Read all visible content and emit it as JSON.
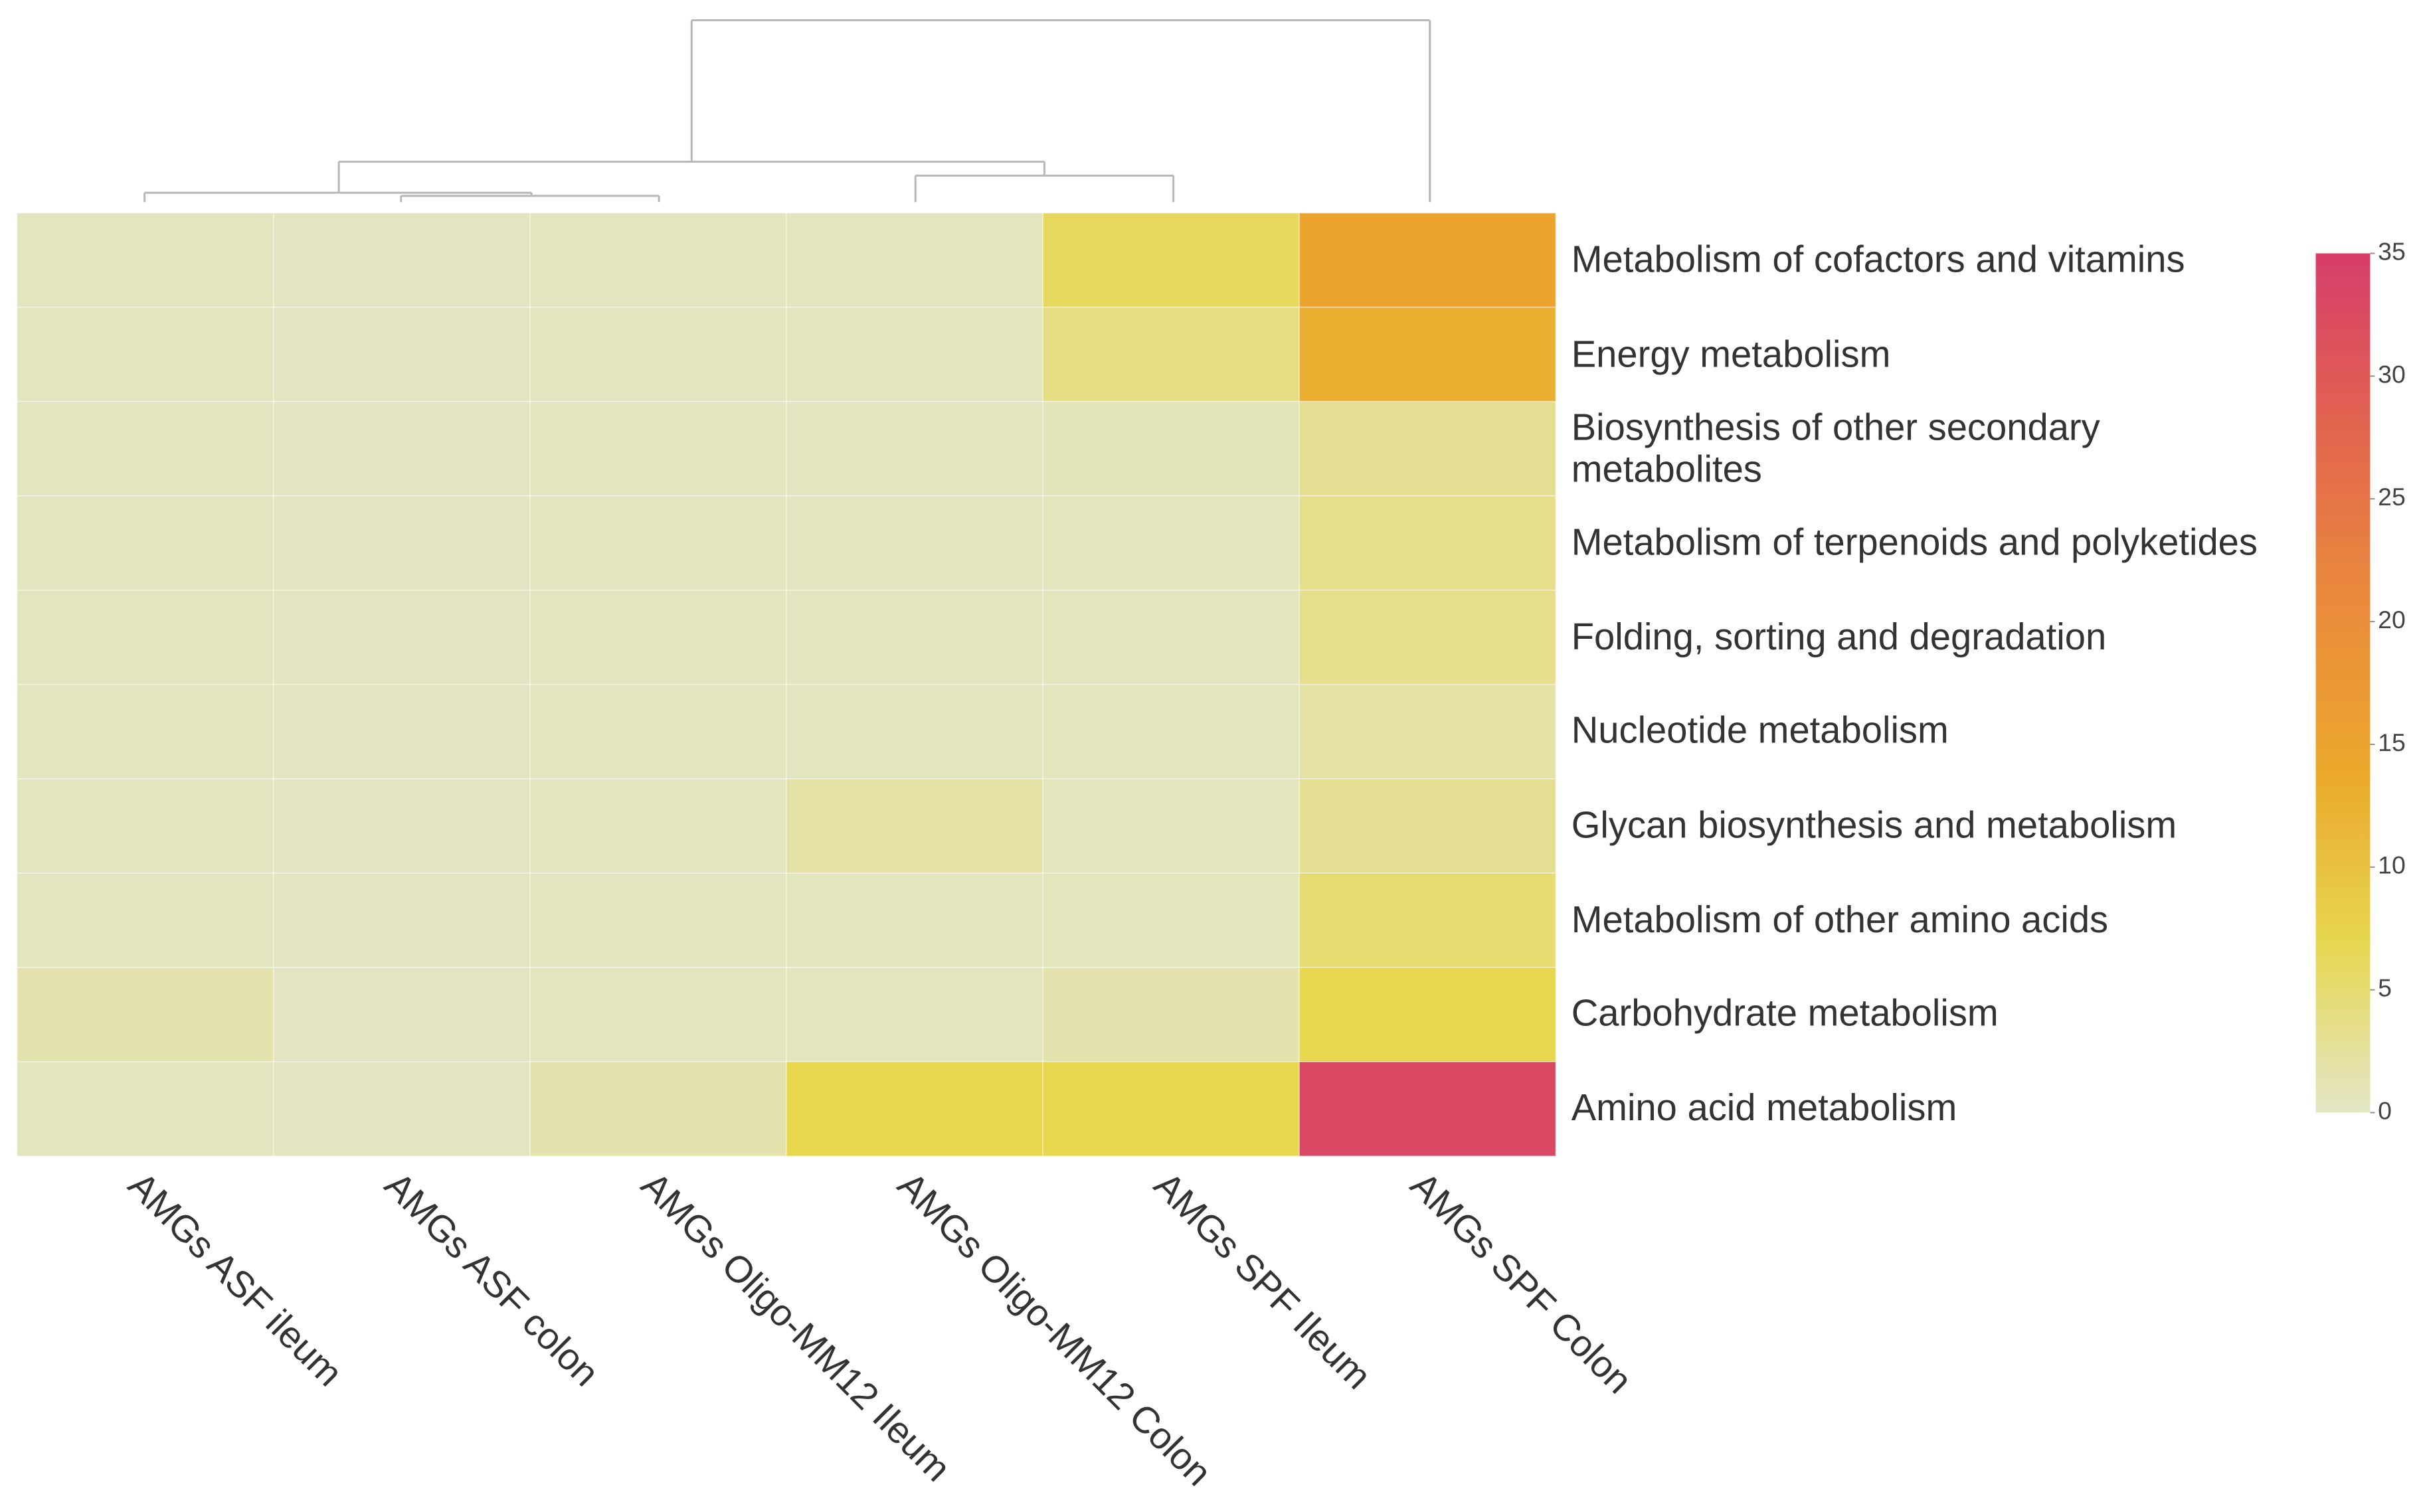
{
  "chart_data": {
    "type": "heatmap",
    "columns": [
      "AMGs ASF ileum",
      "AMGs ASF colon",
      "AMGs Oligo-MM12 Ileum",
      "AMGs Oligo-MM12 Colon",
      "AMGs SPF Ileum",
      "AMGs SPF Colon"
    ],
    "rows": [
      "Metabolism of cofactors and vitamins",
      "Energy metabolism",
      "Biosynthesis of other secondary metabolites",
      "Metabolism of terpenoids and polyketides",
      "Folding, sorting and degradation",
      "Nucleotide metabolism",
      "Glycan biosynthesis and metabolism",
      "Metabolism of other amino acids",
      "Carbohydrate metabolism",
      "Amino acid metabolism"
    ],
    "values": [
      [
        0.5,
        0.3,
        0.4,
        0.5,
        6,
        15
      ],
      [
        0.5,
        0.3,
        0.4,
        0.5,
        4,
        13
      ],
      [
        0.4,
        0.3,
        0.4,
        0.4,
        0.8,
        3
      ],
      [
        0.4,
        0.3,
        0.4,
        0.4,
        0.6,
        3.5
      ],
      [
        0.4,
        0.3,
        0.4,
        0.4,
        0.6,
        3.5
      ],
      [
        0.4,
        0.3,
        0.4,
        0.4,
        0.6,
        2
      ],
      [
        0.4,
        0.3,
        0.4,
        2,
        0.6,
        3
      ],
      [
        0.4,
        0.3,
        0.4,
        0.5,
        0.6,
        5
      ],
      [
        1.5,
        0.3,
        0.5,
        0.5,
        1.5,
        7
      ],
      [
        0.4,
        0.3,
        1.5,
        7,
        7,
        33
      ]
    ],
    "colorscale": [
      "#e3e6c7",
      "#e7d64e",
      "#eba72c",
      "#ea8a3c",
      "#e2644f",
      "#d63d6a"
    ],
    "clim": [
      0,
      35
    ],
    "cticks": [
      0,
      5,
      10,
      15,
      20,
      25,
      30,
      35
    ]
  }
}
